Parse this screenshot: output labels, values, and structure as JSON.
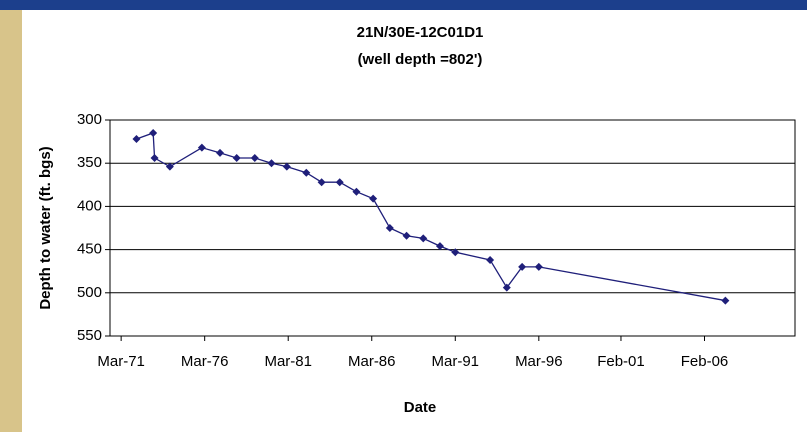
{
  "chart_data": {
    "type": "line",
    "title": "21N/30E-12C01D1",
    "subtitle": "(well depth =802')",
    "x_label": "Date",
    "y_label": "Depth to water (ft. bgs)",
    "x": [
      "1972-02",
      "1973-02",
      "1973-03",
      "1974-02",
      "1976-01",
      "1977-02",
      "1978-02",
      "1979-03",
      "1980-03",
      "1981-02",
      "1982-04",
      "1983-03",
      "1984-04",
      "1985-04",
      "1986-04",
      "1987-04",
      "1988-04",
      "1989-04",
      "1990-04",
      "1991-03",
      "1993-04",
      "1994-04",
      "1995-03",
      "1996-03",
      "2007-05"
    ],
    "series": [
      {
        "name": "21N/30E-12C01D1",
        "color": "#1f1f7a",
        "values": [
          322,
          315,
          344,
          354,
          332,
          338,
          344,
          344,
          350,
          354,
          361,
          372,
          372,
          383,
          391,
          425,
          434,
          437,
          446,
          453,
          462,
          494,
          470,
          470,
          509
        ]
      }
    ],
    "xlim": [
      "1970-07",
      "2011-07"
    ],
    "xticks": [
      {
        "value": "1971-03",
        "label": "Mar-71"
      },
      {
        "value": "1976-03",
        "label": "Mar-76"
      },
      {
        "value": "1981-03",
        "label": "Mar-81"
      },
      {
        "value": "1986-03",
        "label": "Mar-86"
      },
      {
        "value": "1991-03",
        "label": "Mar-91"
      },
      {
        "value": "1996-03",
        "label": "Mar-96"
      },
      {
        "value": "2001-02",
        "label": "Feb-01"
      },
      {
        "value": "2006-02",
        "label": "Feb-06"
      }
    ],
    "ylim": [
      550,
      300
    ],
    "yticks": [
      300,
      350,
      400,
      450,
      500,
      550
    ],
    "y_inverted": true,
    "grid": true
  }
}
